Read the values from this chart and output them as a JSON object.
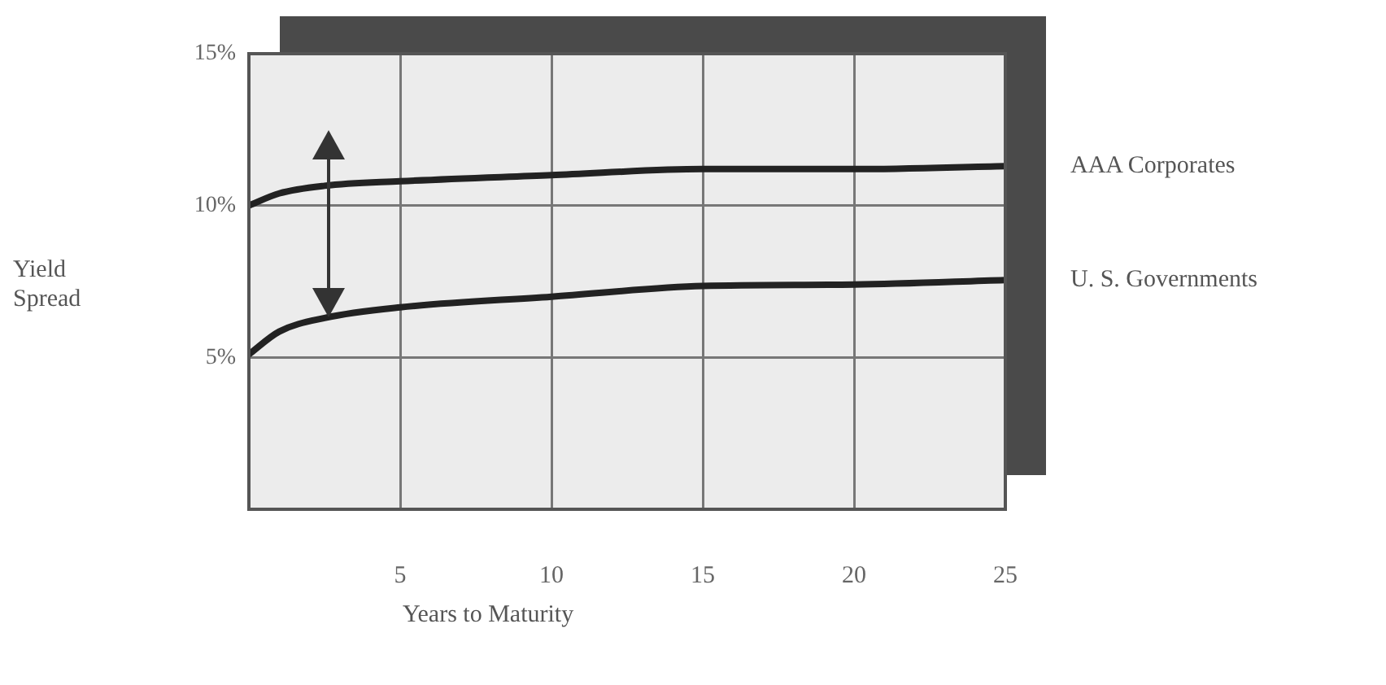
{
  "chart_data": {
    "type": "line",
    "xlabel": "Years to Maturity",
    "ylabel": "Yield Spread",
    "x": [
      0,
      1,
      2.5,
      5,
      10,
      15,
      20,
      25
    ],
    "series": [
      {
        "name": "AAA Corporates",
        "color": "#222222",
        "values": [
          10,
          10.4,
          10.65,
          10.8,
          11.0,
          11.2,
          11.2,
          11.3
        ]
      },
      {
        "name": "U. S. Governments",
        "color": "#222222",
        "values": [
          5.1,
          5.85,
          6.3,
          6.65,
          7.0,
          7.35,
          7.4,
          7.55
        ]
      }
    ],
    "xlim": [
      0,
      25
    ],
    "xticks": [
      5,
      10,
      15,
      20,
      25
    ],
    "ylim": [
      0,
      15
    ],
    "yticks": [
      {
        "value": 5,
        "label": "5%"
      },
      {
        "value": 10,
        "label": "10%"
      },
      {
        "value": 15,
        "label": "15%"
      }
    ],
    "grid": true,
    "legend": false,
    "marker": "none",
    "line_style": "solid"
  }
}
